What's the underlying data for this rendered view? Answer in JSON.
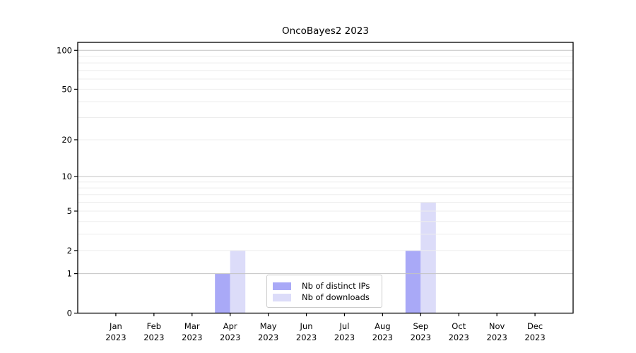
{
  "chart_data": {
    "type": "bar",
    "title": "OncoBayes2 2023",
    "categories": [
      "Jan 2023",
      "Feb 2023",
      "Mar 2023",
      "Apr 2023",
      "May 2023",
      "Jun 2023",
      "Jul 2023",
      "Aug 2023",
      "Sep 2023",
      "Oct 2023",
      "Nov 2023",
      "Dec 2023"
    ],
    "series": [
      {
        "name": "Nb of distinct IPs",
        "color": "#a9a9f7",
        "values": [
          0,
          0,
          0,
          1,
          0,
          0,
          0,
          0,
          2,
          0,
          0,
          0
        ]
      },
      {
        "name": "Nb of downloads",
        "color": "#dcdcf9",
        "values": [
          0,
          0,
          0,
          2,
          0,
          0,
          0,
          0,
          6,
          0,
          0,
          0
        ]
      }
    ],
    "xlabel": "",
    "ylabel": "",
    "y_scale": "log1p",
    "ylim": [
      0,
      115
    ],
    "y_ticks": [
      0,
      1,
      2,
      5,
      10,
      20,
      50,
      100
    ],
    "grid": {
      "major": [
        1,
        10,
        100
      ],
      "minor": [
        2,
        3,
        4,
        5,
        6,
        7,
        8,
        9,
        20,
        30,
        40,
        50,
        60,
        70,
        80,
        90
      ]
    },
    "legend_position": "lower center",
    "colors": {
      "grid_major": "#c3c3c3",
      "grid_minor": "#ededed",
      "axis": "#000000",
      "legend_border": "#cccccc",
      "background": "#ffffff"
    }
  }
}
